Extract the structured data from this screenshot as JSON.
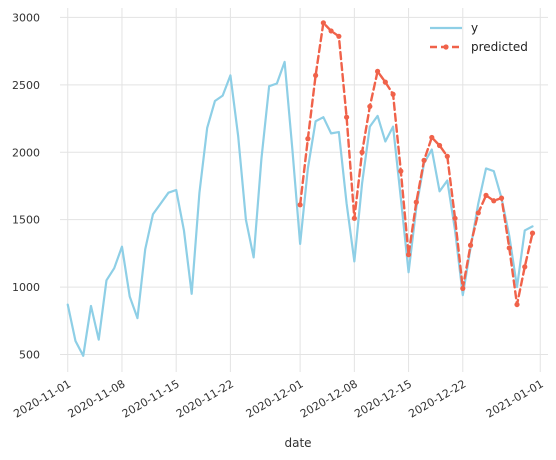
{
  "chart_data": {
    "type": "line",
    "title": "",
    "xlabel": "date",
    "ylabel": "",
    "ylim": [
      370,
      3070
    ],
    "xlim": [
      "2020-10-31",
      "2021-01-02"
    ],
    "grid": true,
    "legend_position": "top-right",
    "x_ticks": [
      "2020-11-01",
      "2020-11-08",
      "2020-11-15",
      "2020-11-22",
      "2020-12-01",
      "2020-12-08",
      "2020-12-15",
      "2020-12-22",
      "2021-01-01"
    ],
    "y_ticks": [
      500,
      1000,
      1500,
      2000,
      2500,
      3000
    ],
    "colors": {
      "y": "#8ecfe6",
      "predicted": "#f0624a"
    },
    "series": [
      {
        "name": "y",
        "style": "solid",
        "points": [
          [
            "2020-11-01",
            870
          ],
          [
            "2020-11-02",
            600
          ],
          [
            "2020-11-03",
            490
          ],
          [
            "2020-11-04",
            860
          ],
          [
            "2020-11-05",
            610
          ],
          [
            "2020-11-06",
            1050
          ],
          [
            "2020-11-07",
            1140
          ],
          [
            "2020-11-08",
            1300
          ],
          [
            "2020-11-09",
            930
          ],
          [
            "2020-11-10",
            770
          ],
          [
            "2020-11-11",
            1280
          ],
          [
            "2020-11-12",
            1540
          ],
          [
            "2020-11-13",
            1620
          ],
          [
            "2020-11-14",
            1700
          ],
          [
            "2020-11-15",
            1720
          ],
          [
            "2020-11-16",
            1420
          ],
          [
            "2020-11-17",
            950
          ],
          [
            "2020-11-18",
            1700
          ],
          [
            "2020-11-19",
            2180
          ],
          [
            "2020-11-20",
            2380
          ],
          [
            "2020-11-21",
            2420
          ],
          [
            "2020-11-22",
            2570
          ],
          [
            "2020-11-23",
            2120
          ],
          [
            "2020-11-24",
            1500
          ],
          [
            "2020-11-25",
            1220
          ],
          [
            "2020-11-26",
            1950
          ],
          [
            "2020-11-27",
            2490
          ],
          [
            "2020-11-28",
            2510
          ],
          [
            "2020-11-29",
            2670
          ],
          [
            "2020-11-30",
            2020
          ],
          [
            "2020-12-01",
            1320
          ],
          [
            "2020-12-02",
            1880
          ],
          [
            "2020-12-03",
            2230
          ],
          [
            "2020-12-04",
            2260
          ],
          [
            "2020-12-05",
            2140
          ],
          [
            "2020-12-06",
            2150
          ],
          [
            "2020-12-07",
            1620
          ],
          [
            "2020-12-08",
            1190
          ],
          [
            "2020-12-09",
            1770
          ],
          [
            "2020-12-10",
            2190
          ],
          [
            "2020-12-11",
            2270
          ],
          [
            "2020-12-12",
            2080
          ],
          [
            "2020-12-13",
            2190
          ],
          [
            "2020-12-14",
            1660
          ],
          [
            "2020-12-15",
            1110
          ],
          [
            "2020-12-16",
            1590
          ],
          [
            "2020-12-17",
            1920
          ],
          [
            "2020-12-18",
            2020
          ],
          [
            "2020-12-19",
            1710
          ],
          [
            "2020-12-20",
            1790
          ],
          [
            "2020-12-21",
            1420
          ],
          [
            "2020-12-22",
            940
          ],
          [
            "2020-12-23",
            1290
          ],
          [
            "2020-12-24",
            1620
          ],
          [
            "2020-12-25",
            1880
          ],
          [
            "2020-12-26",
            1860
          ],
          [
            "2020-12-27",
            1660
          ],
          [
            "2020-12-28",
            1380
          ],
          [
            "2020-12-29",
            1000
          ],
          [
            "2020-12-30",
            1420
          ],
          [
            "2020-12-31",
            1450
          ]
        ]
      },
      {
        "name": "predicted",
        "style": "dashed-markers",
        "points": [
          [
            "2020-12-01",
            1610
          ],
          [
            "2020-12-02",
            2100
          ],
          [
            "2020-12-03",
            2570
          ],
          [
            "2020-12-04",
            2960
          ],
          [
            "2020-12-05",
            2900
          ],
          [
            "2020-12-06",
            2860
          ],
          [
            "2020-12-07",
            2260
          ],
          [
            "2020-12-08",
            1510
          ],
          [
            "2020-12-09",
            2000
          ],
          [
            "2020-12-10",
            2340
          ],
          [
            "2020-12-11",
            2600
          ],
          [
            "2020-12-12",
            2520
          ],
          [
            "2020-12-13",
            2430
          ],
          [
            "2020-12-14",
            1860
          ],
          [
            "2020-12-15",
            1240
          ],
          [
            "2020-12-16",
            1630
          ],
          [
            "2020-12-17",
            1940
          ],
          [
            "2020-12-18",
            2110
          ],
          [
            "2020-12-19",
            2050
          ],
          [
            "2020-12-20",
            1970
          ],
          [
            "2020-12-21",
            1510
          ],
          [
            "2020-12-22",
            990
          ],
          [
            "2020-12-23",
            1310
          ],
          [
            "2020-12-24",
            1550
          ],
          [
            "2020-12-25",
            1680
          ],
          [
            "2020-12-26",
            1640
          ],
          [
            "2020-12-27",
            1660
          ],
          [
            "2020-12-28",
            1290
          ],
          [
            "2020-12-29",
            870
          ],
          [
            "2020-12-30",
            1150
          ],
          [
            "2020-12-31",
            1400
          ]
        ]
      }
    ]
  }
}
